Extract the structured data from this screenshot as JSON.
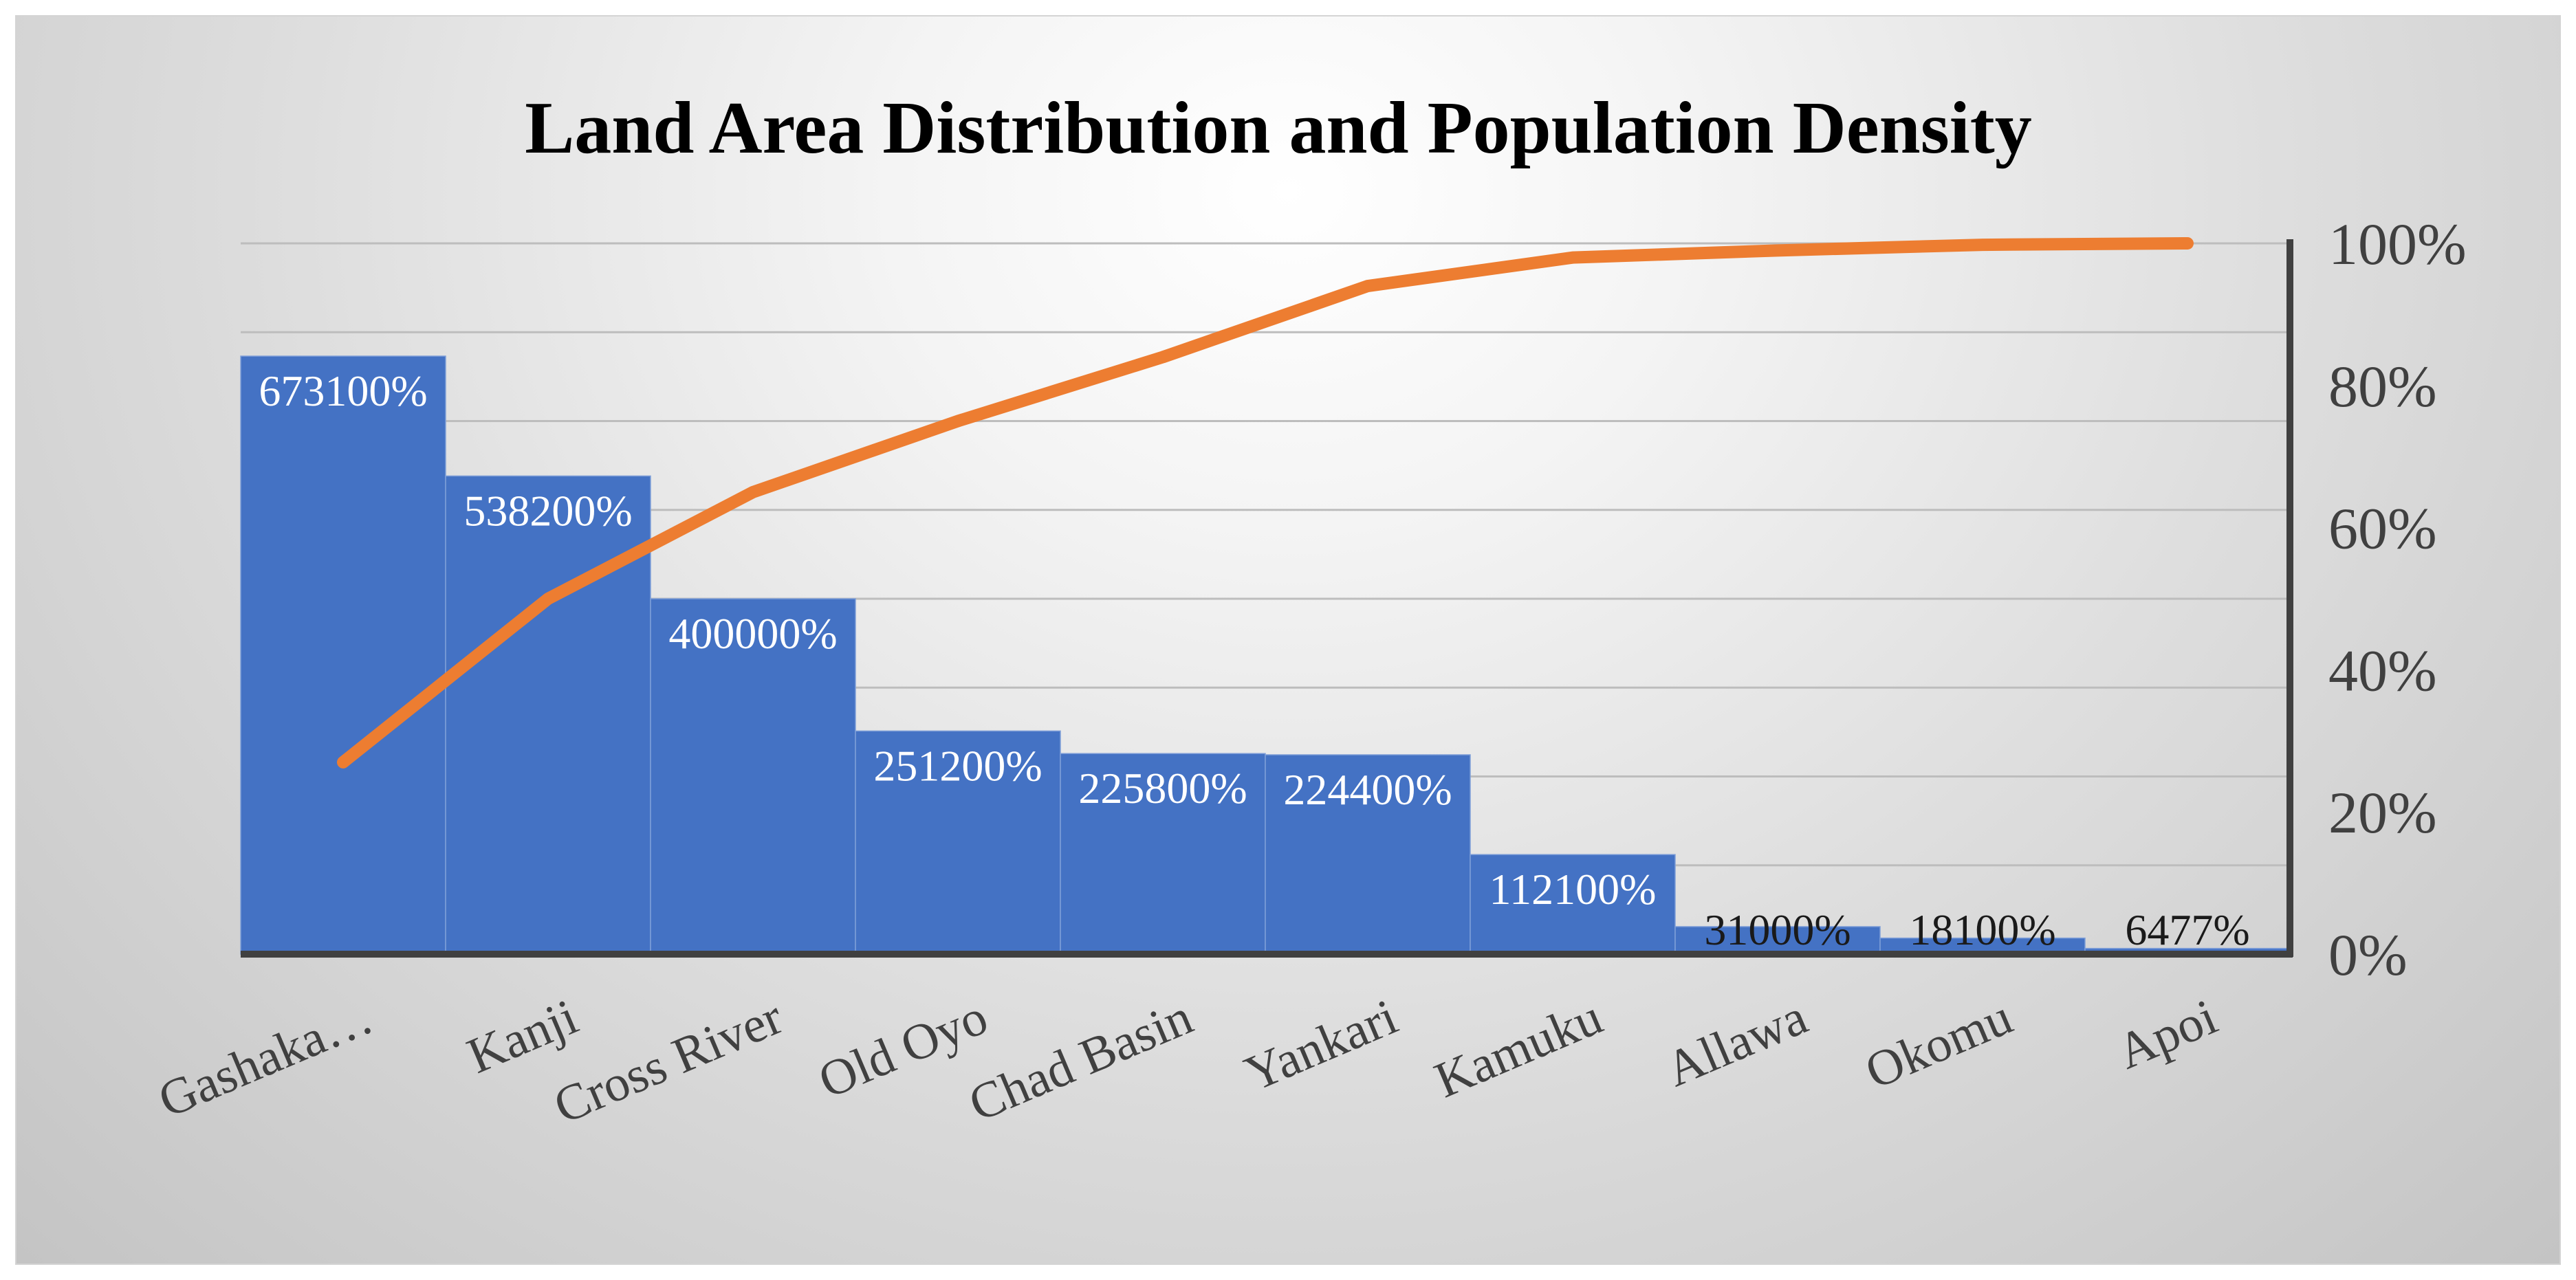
{
  "chart_data": {
    "type": "bar",
    "title": "Land Area Distribution and Population Density",
    "categories": [
      "Gashaka…",
      "Kanji",
      "Cross River",
      "Old Oyo",
      "Chad Basin",
      "Yankari",
      "Kamuku",
      "Allawa",
      "Okomu",
      "Apoi"
    ],
    "series": [
      {
        "type": "bar",
        "values": [
          6731,
          5382,
          4000,
          2512,
          2258,
          2244,
          1121,
          310,
          181,
          64.77
        ],
        "data_labels": [
          "673100%",
          "538200%",
          "400000%",
          "251200%",
          "225800%",
          "224400%",
          "112100%",
          "31000%",
          "18100%",
          "6477%"
        ],
        "color": "#4472C4"
      },
      {
        "type": "line",
        "values": [
          27,
          50,
          65,
          75,
          84,
          94,
          98,
          99,
          99.8,
          100
        ],
        "color": "#ED7D31"
      }
    ],
    "axes": {
      "left": {
        "ylim": [
          0,
          8000
        ],
        "labels_shown": false
      },
      "right": {
        "ylim": [
          0,
          100
        ],
        "ticks": [
          "0%",
          "20%",
          "40%",
          "60%",
          "80%",
          "100%"
        ]
      }
    },
    "grid": true,
    "legend": "none"
  }
}
